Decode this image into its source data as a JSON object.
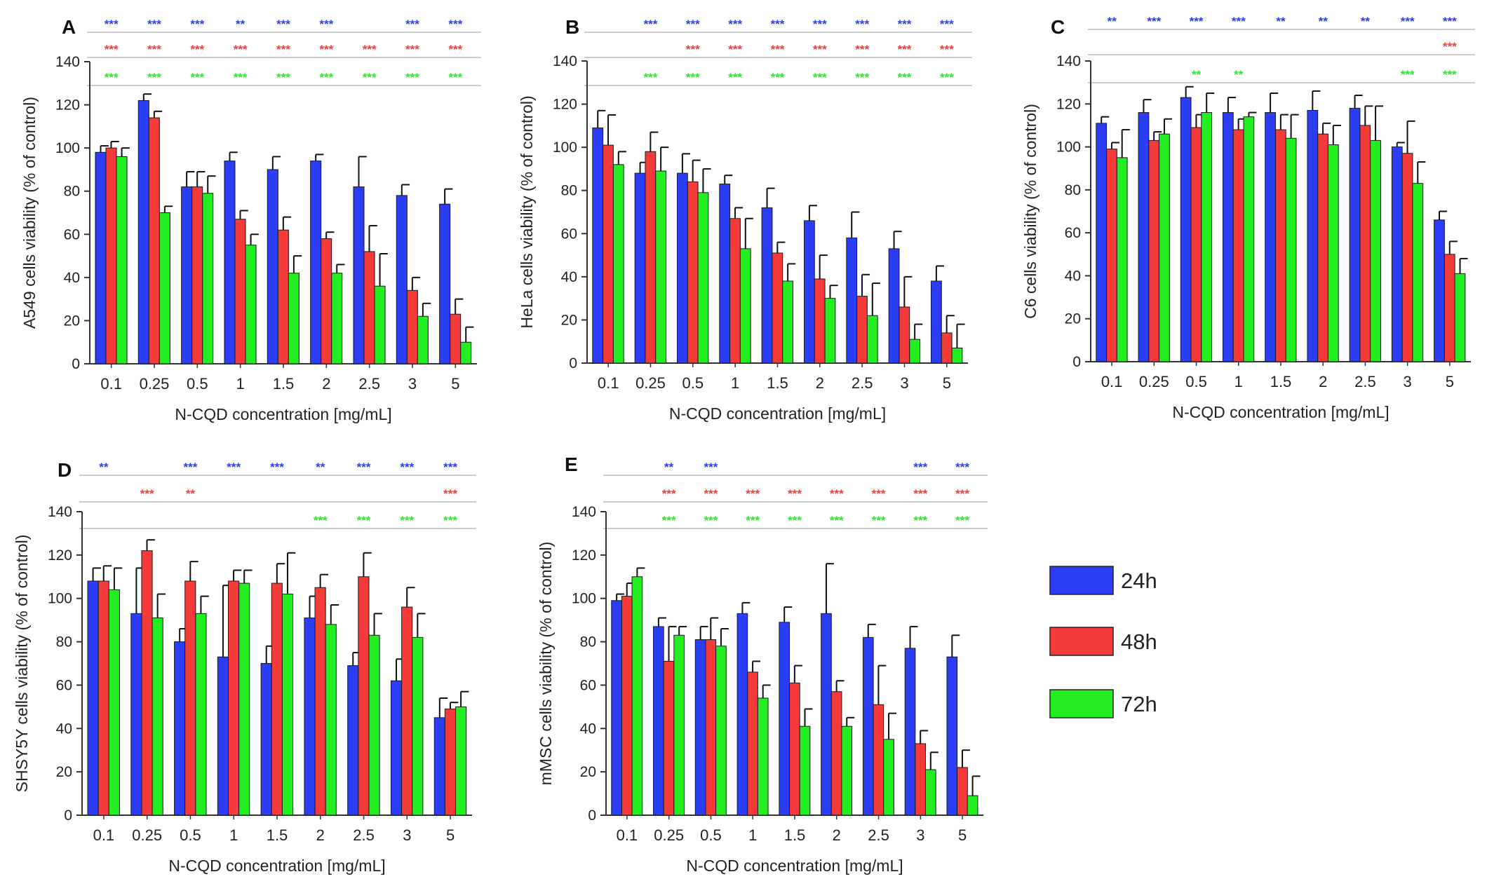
{
  "legend": {
    "entries": [
      {
        "label": "24h",
        "color": "#2b3ef5"
      },
      {
        "label": "48h",
        "color": "#f53a3a"
      },
      {
        "label": "72h",
        "color": "#22ee22"
      }
    ]
  },
  "chart_data": [
    {
      "type": "bar",
      "panel_label": "A",
      "ylabel": "A549 cells viability  (% of control)",
      "xlabel": "N-CQD concentration [mg/mL]",
      "categories": [
        "0.1",
        "0.25",
        "0.5",
        "1",
        "1.5",
        "2",
        "2.5",
        "3",
        "5"
      ],
      "ylim": [
        0,
        140
      ],
      "yticks": [
        "0",
        "20",
        "40",
        "60",
        "80",
        "100",
        "120",
        "140"
      ],
      "series": [
        {
          "name": "24h",
          "values": [
            98,
            122,
            82,
            94,
            90,
            94,
            82,
            78,
            74
          ],
          "errors": [
            3,
            3,
            7,
            4,
            6,
            3,
            14,
            5,
            7
          ]
        },
        {
          "name": "48h",
          "values": [
            100,
            114,
            82,
            67,
            62,
            58,
            52,
            34,
            23
          ],
          "errors": [
            3,
            3,
            7,
            4,
            6,
            3,
            12,
            6,
            7
          ]
        },
        {
          "name": "72h",
          "values": [
            96,
            70,
            79,
            55,
            42,
            42,
            36,
            22,
            10
          ],
          "errors": [
            4,
            3,
            8,
            5,
            8,
            4,
            15,
            6,
            7
          ]
        }
      ],
      "significance": [
        [
          "***",
          "***",
          "***",
          "**",
          "***",
          "***",
          "",
          "***",
          "***"
        ],
        [
          "***",
          "***",
          "***",
          "***",
          "***",
          "***",
          "***",
          "***",
          "***"
        ],
        [
          "***",
          "***",
          "***",
          "***",
          "***",
          "***",
          "***",
          "***",
          "***"
        ]
      ]
    },
    {
      "type": "bar",
      "panel_label": "B",
      "ylabel": "HeLa cells viability  (% of control)",
      "xlabel": "N-CQD concentration [mg/mL]",
      "categories": [
        "0.1",
        "0.25",
        "0.5",
        "1",
        "1.5",
        "2",
        "2.5",
        "3",
        "5"
      ],
      "ylim": [
        0,
        140
      ],
      "yticks": [
        "0",
        "20",
        "40",
        "60",
        "80",
        "100",
        "120",
        "140"
      ],
      "series": [
        {
          "name": "24h",
          "values": [
            109,
            88,
            88,
            83,
            72,
            66,
            58,
            53,
            38
          ],
          "errors": [
            8,
            5,
            9,
            4,
            9,
            7,
            12,
            8,
            7
          ]
        },
        {
          "name": "48h",
          "values": [
            101,
            98,
            84,
            67,
            51,
            39,
            31,
            26,
            14
          ],
          "errors": [
            14,
            9,
            10,
            5,
            5,
            11,
            10,
            14,
            8
          ]
        },
        {
          "name": "72h",
          "values": [
            92,
            89,
            79,
            53,
            38,
            30,
            22,
            11,
            7
          ],
          "errors": [
            6,
            11,
            11,
            14,
            8,
            6,
            15,
            7,
            11
          ]
        }
      ],
      "significance": [
        [
          "",
          "***",
          "***",
          "***",
          "***",
          "***",
          "***",
          "***",
          "***"
        ],
        [
          "",
          "",
          "***",
          "***",
          "***",
          "***",
          "***",
          "***",
          "***"
        ],
        [
          "",
          "***",
          "***",
          "***",
          "***",
          "***",
          "***",
          "***",
          "***"
        ]
      ]
    },
    {
      "type": "bar",
      "panel_label": "C",
      "ylabel": "C6 cells viability  (% of control)",
      "xlabel": "N-CQD concentration [mg/mL]",
      "categories": [
        "0.1",
        "0.25",
        "0.5",
        "1",
        "1.5",
        "2",
        "2.5",
        "3",
        "5"
      ],
      "ylim": [
        0,
        140
      ],
      "yticks": [
        "0",
        "20",
        "40",
        "60",
        "80",
        "100",
        "120",
        "140"
      ],
      "series": [
        {
          "name": "24h",
          "values": [
            111,
            116,
            123,
            116,
            116,
            117,
            118,
            100,
            66
          ],
          "errors": [
            3,
            6,
            5,
            7,
            9,
            9,
            6,
            2,
            4
          ]
        },
        {
          "name": "48h",
          "values": [
            99,
            103,
            109,
            108,
            108,
            106,
            110,
            97,
            50
          ],
          "errors": [
            3,
            4,
            6,
            5,
            7,
            5,
            9,
            15,
            6
          ]
        },
        {
          "name": "72h",
          "values": [
            95,
            106,
            116,
            114,
            104,
            101,
            103,
            83,
            41
          ],
          "errors": [
            13,
            7,
            9,
            2,
            11,
            9,
            16,
            10,
            7
          ]
        }
      ],
      "significance": [
        [
          "**",
          "***",
          "***",
          "***",
          "**",
          "**",
          "**",
          "***",
          "***"
        ],
        [
          "",
          "",
          "",
          "",
          "",
          "",
          "",
          "",
          "***"
        ],
        [
          "",
          "",
          "**",
          "**",
          "",
          "",
          "",
          "***",
          "***"
        ]
      ]
    },
    {
      "type": "bar",
      "panel_label": "D",
      "ylabel": "SHSY5Y cells viability  (% of control)",
      "xlabel": "N-CQD concentration [mg/mL]",
      "categories": [
        "0.1",
        "0.25",
        "0.5",
        "1",
        "1.5",
        "2",
        "2.5",
        "3",
        "5"
      ],
      "ylim": [
        0,
        140
      ],
      "yticks": [
        "0",
        "20",
        "40",
        "60",
        "80",
        "100",
        "120",
        "140"
      ],
      "series": [
        {
          "name": "24h",
          "values": [
            108,
            93,
            80,
            73,
            70,
            91,
            69,
            62,
            45
          ],
          "errors": [
            6,
            21,
            6,
            33,
            8,
            10,
            6,
            10,
            9
          ]
        },
        {
          "name": "48h",
          "values": [
            108,
            122,
            108,
            108,
            107,
            105,
            110,
            96,
            49
          ],
          "errors": [
            7,
            5,
            9,
            5,
            9,
            6,
            11,
            9,
            3
          ]
        },
        {
          "name": "72h",
          "values": [
            104,
            91,
            93,
            107,
            102,
            88,
            83,
            82,
            50
          ],
          "errors": [
            10,
            11,
            8,
            6,
            19,
            9,
            10,
            11,
            7
          ]
        }
      ],
      "significance": [
        [
          "**",
          "",
          "***",
          "***",
          "***",
          "**",
          "***",
          "***",
          "***"
        ],
        [
          "",
          "***",
          "**",
          "",
          "",
          "",
          "",
          "",
          "***"
        ],
        [
          "",
          "",
          "",
          "",
          "",
          "***",
          "***",
          "***",
          "***"
        ]
      ]
    },
    {
      "type": "bar",
      "panel_label": "E",
      "ylabel": "mMSC cells viability  (% of control)",
      "xlabel": "N-CQD concentration [mg/mL]",
      "categories": [
        "0.1",
        "0.25",
        "0.5",
        "1",
        "1.5",
        "2",
        "2.5",
        "3",
        "5"
      ],
      "ylim": [
        0,
        140
      ],
      "yticks": [
        "0",
        "20",
        "40",
        "60",
        "80",
        "100",
        "120",
        "140"
      ],
      "series": [
        {
          "name": "24h",
          "values": [
            99,
            87,
            81,
            93,
            89,
            93,
            82,
            77,
            73
          ],
          "errors": [
            3,
            4,
            6,
            5,
            7,
            23,
            6,
            10,
            10
          ]
        },
        {
          "name": "48h",
          "values": [
            101,
            71,
            81,
            66,
            61,
            57,
            51,
            33,
            22
          ],
          "errors": [
            6,
            16,
            10,
            5,
            8,
            5,
            18,
            6,
            8
          ]
        },
        {
          "name": "72h",
          "values": [
            110,
            83,
            78,
            54,
            41,
            41,
            35,
            21,
            9
          ],
          "errors": [
            4,
            4,
            8,
            6,
            8,
            4,
            12,
            8,
            9
          ]
        }
      ],
      "significance": [
        [
          "",
          "**",
          "***",
          "",
          "",
          "",
          "",
          "***",
          "***"
        ],
        [
          "",
          "***",
          "***",
          "***",
          "***",
          "***",
          "***",
          "***",
          "***"
        ],
        [
          "",
          "***",
          "***",
          "***",
          "***",
          "***",
          "***",
          "***",
          "***"
        ]
      ]
    }
  ]
}
